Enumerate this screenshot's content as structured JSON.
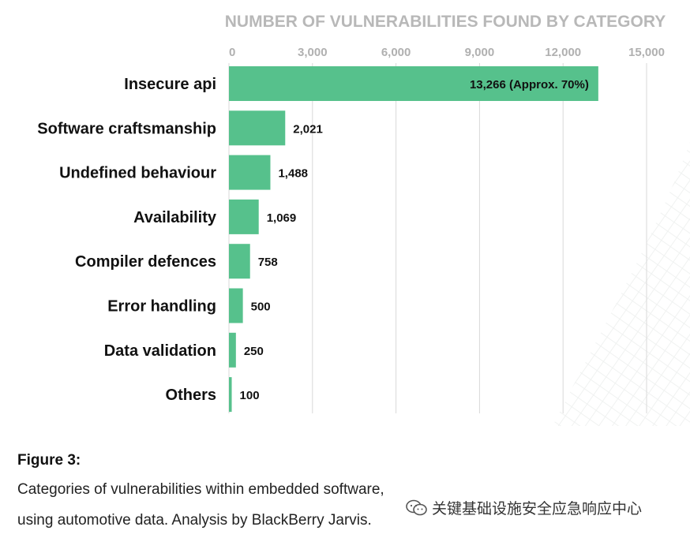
{
  "chart_data": {
    "type": "bar",
    "orientation": "horizontal",
    "title": "NUMBER OF VULNERABILITIES FOUND BY CATEGORY",
    "categories": [
      "Insecure api",
      "Software craftsmanship",
      "Undefined behaviour",
      "Availability",
      "Compiler defences",
      "Error handling",
      "Data validation",
      "Others"
    ],
    "values": [
      13266,
      2021,
      1488,
      1069,
      758,
      500,
      250,
      100
    ],
    "value_labels": [
      "13,266 (Approx. 70%)",
      "2,021",
      "1,488",
      "1,069",
      "758",
      "500",
      "250",
      "100"
    ],
    "xticks": [
      "0",
      "3,000",
      "6,000",
      "9,000",
      "12,000",
      "15,000"
    ],
    "xtick_values": [
      0,
      3000,
      6000,
      9000,
      12000,
      15000
    ],
    "xlim": [
      0,
      15000
    ],
    "grid": true,
    "bar_color": "#56c18c"
  },
  "caption": {
    "title": "Figure 3:",
    "line1": "Categories of vulnerabilities within embedded software,",
    "line2": "using automotive data. Analysis by BlackBerry Jarvis."
  },
  "watermark": {
    "icon": "wechat-icon",
    "text": "关键基础设施安全应急响应中心"
  }
}
